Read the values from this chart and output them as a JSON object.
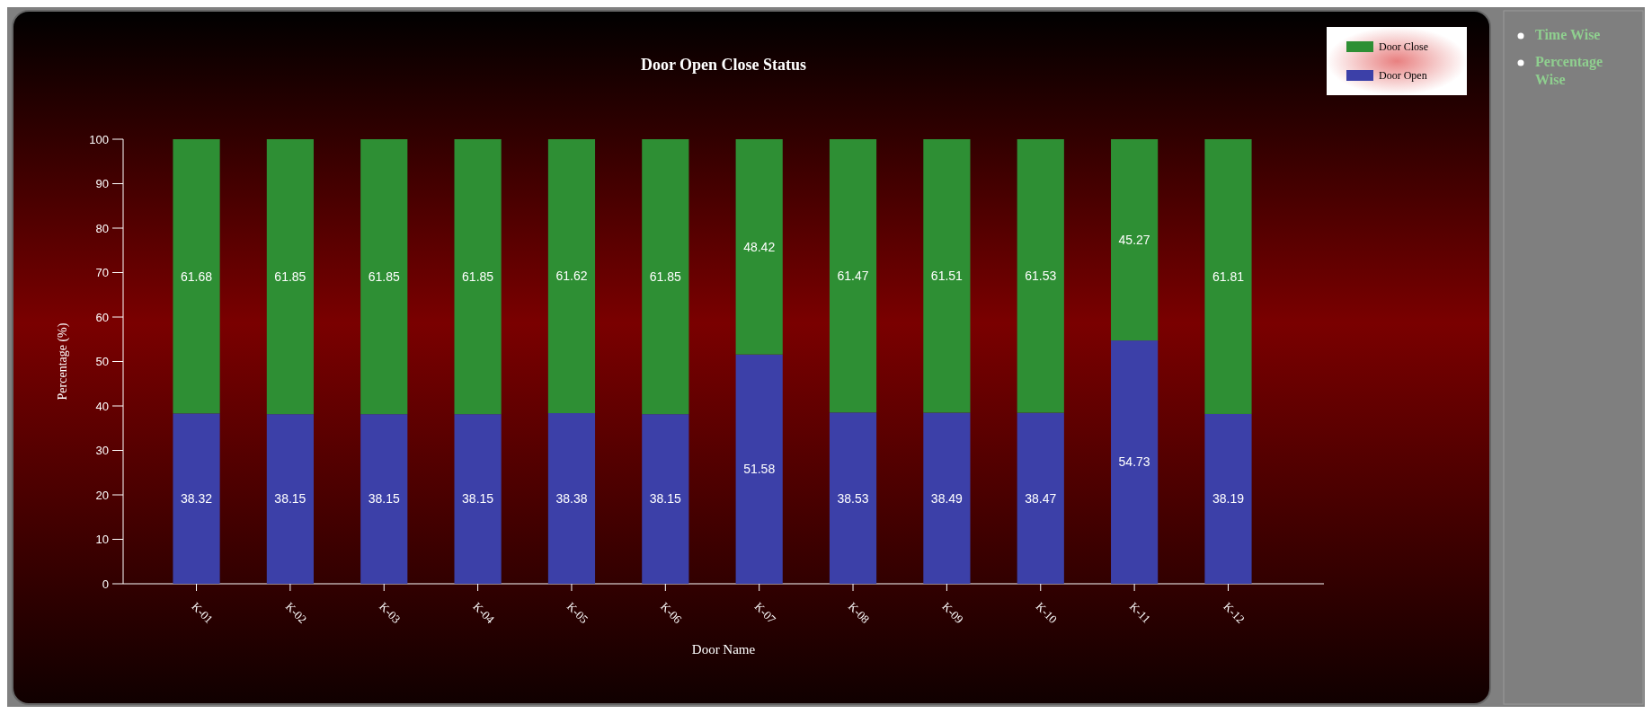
{
  "chart_data": {
    "type": "bar",
    "title": "Door Open Close Status",
    "xlabel": "Door Name",
    "ylabel": "Percentage (%)",
    "categories": [
      "K-01",
      "K-02",
      "K-03",
      "K-04",
      "K-05",
      "K-06",
      "K-07",
      "K-08",
      "K-09",
      "K-10",
      "K-11",
      "K-12"
    ],
    "series": [
      {
        "name": "Door Open",
        "color": "#3c40a8",
        "values": [
          38.32,
          38.15,
          38.15,
          38.15,
          38.38,
          38.15,
          51.58,
          38.53,
          38.49,
          38.47,
          54.73,
          38.19
        ]
      },
      {
        "name": "Door Close",
        "color": "#2e8f34",
        "values": [
          61.68,
          61.85,
          61.85,
          61.85,
          61.62,
          61.85,
          48.42,
          61.47,
          61.51,
          61.53,
          45.27,
          61.81
        ]
      }
    ],
    "stacked": true,
    "data_labels": true,
    "ylim": [
      0,
      100
    ],
    "yticks": [
      0,
      10,
      20,
      30,
      40,
      50,
      60,
      70,
      80,
      90,
      100
    ],
    "legend": "top right",
    "annotations": [
      "Time Wise",
      "Percentage Wise"
    ]
  }
}
